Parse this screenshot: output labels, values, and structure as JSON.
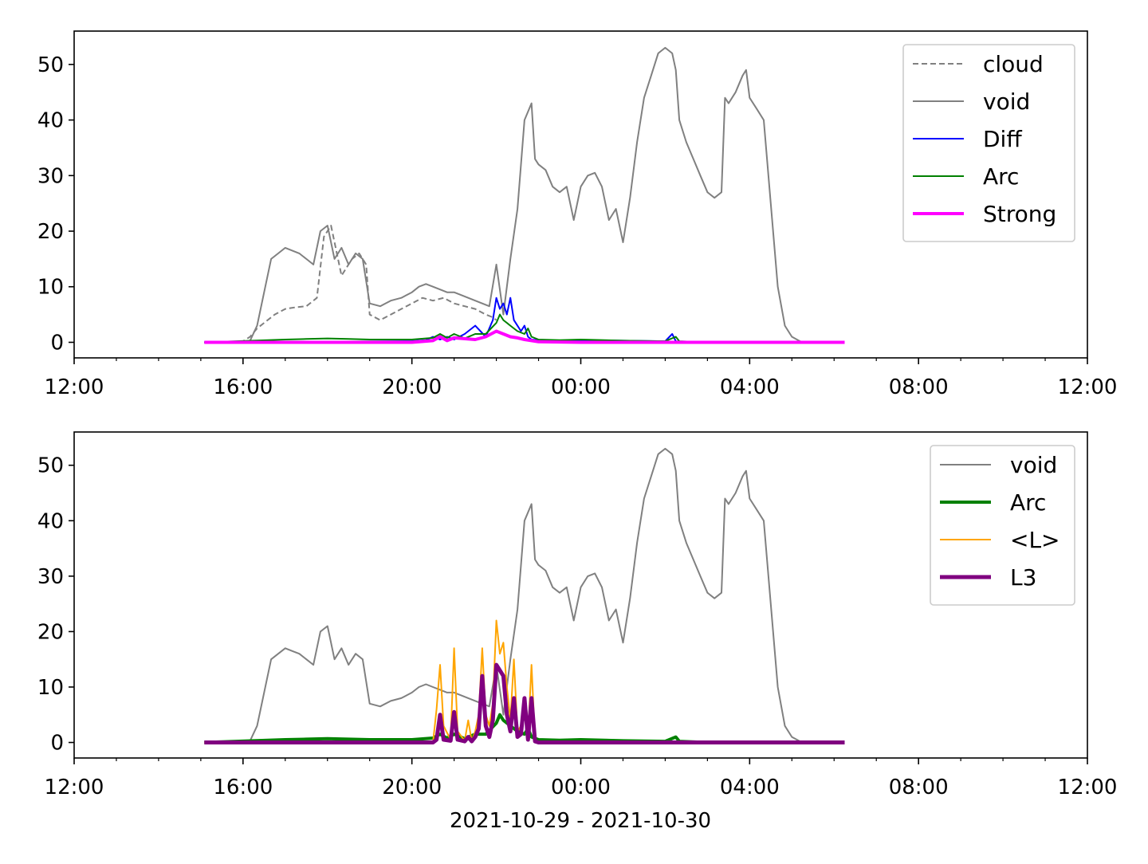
{
  "figure": {
    "xlabel": "2021-10-29 - 2021-10-30"
  },
  "chart_data": [
    {
      "type": "line",
      "panel": "top",
      "xlim": [
        "2021-10-29 12:00",
        "2021-10-30 12:00"
      ],
      "ylim": [
        -2.8,
        56
      ],
      "x_ticks": [
        "12:00",
        "16:00",
        "20:00",
        "00:00",
        "04:00",
        "08:00",
        "12:00"
      ],
      "y_ticks": [
        0,
        10,
        20,
        30,
        40,
        50
      ],
      "legend_position": "upper-right",
      "series": [
        {
          "name": "cloud",
          "color": "#808080",
          "style": "dashed",
          "width": 2,
          "x": [
            "15:05",
            "15:50",
            "16:00",
            "16:10",
            "16:20",
            "16:30",
            "16:45",
            "17:00",
            "17:15",
            "17:30",
            "17:45",
            "17:55",
            "18:05",
            "18:20",
            "18:35",
            "18:45",
            "18:55",
            "19:00",
            "19:15",
            "19:30",
            "19:45",
            "20:00",
            "20:15",
            "20:30",
            "20:45",
            "21:00",
            "21:15",
            "21:30",
            "21:45",
            "21:55",
            "22:00"
          ],
          "y": [
            0,
            0,
            0.2,
            1.0,
            2.5,
            3.5,
            5.0,
            6.0,
            6.3,
            6.5,
            8.0,
            19.0,
            21.0,
            12.0,
            15.0,
            16.0,
            14.0,
            5.0,
            4.0,
            5.0,
            6.0,
            7.0,
            8.0,
            7.5,
            8.0,
            7.0,
            6.5,
            6.0,
            5.0,
            4.5,
            4.0
          ]
        },
        {
          "name": "void",
          "color": "#808080",
          "style": "solid",
          "width": 2,
          "x": [
            "15:05",
            "16:00",
            "16:10",
            "16:20",
            "16:30",
            "16:40",
            "16:50",
            "17:00",
            "17:10",
            "17:20",
            "17:30",
            "17:40",
            "17:50",
            "18:00",
            "18:10",
            "18:20",
            "18:30",
            "18:40",
            "18:50",
            "19:00",
            "19:15",
            "19:30",
            "19:45",
            "20:00",
            "20:10",
            "20:20",
            "20:30",
            "20:40",
            "20:50",
            "21:00",
            "21:10",
            "21:20",
            "21:30",
            "21:40",
            "21:50",
            "22:00",
            "22:10",
            "22:20",
            "22:30",
            "22:40",
            "22:50",
            "22:55",
            "23:00",
            "23:10",
            "23:20",
            "23:30",
            "23:40",
            "23:50",
            "00:00",
            "00:10",
            "00:20",
            "00:30",
            "00:40",
            "00:50",
            "01:00",
            "01:10",
            "01:20",
            "01:30",
            "01:40",
            "01:50",
            "02:00",
            "02:10",
            "02:15",
            "02:20",
            "02:30",
            "02:40",
            "02:50",
            "03:00",
            "03:10",
            "03:20",
            "03:25",
            "03:30",
            "03:40",
            "03:50",
            "03:55",
            "04:00",
            "04:10",
            "04:20",
            "04:30",
            "04:40",
            "04:50",
            "05:00",
            "05:10",
            "05:15",
            "06:15"
          ],
          "y": [
            0,
            0,
            0.3,
            3.0,
            9.0,
            15.0,
            16.0,
            17.0,
            16.5,
            16.0,
            15.0,
            14.0,
            20.0,
            21.0,
            15.0,
            17.0,
            14.0,
            16.0,
            15.0,
            7.0,
            6.5,
            7.5,
            8.0,
            9.0,
            10.0,
            10.5,
            10.0,
            9.5,
            9.0,
            9.0,
            8.5,
            8.0,
            7.5,
            7.0,
            6.5,
            14.0,
            5.0,
            15.0,
            24.0,
            40.0,
            43.0,
            33.0,
            32.0,
            31.0,
            28.0,
            27.0,
            28.0,
            22.0,
            28.0,
            30.0,
            30.5,
            28.0,
            22.0,
            24.0,
            18.0,
            26.0,
            36.0,
            44.0,
            48.0,
            52.0,
            53.0,
            52.0,
            49.0,
            40.0,
            36.0,
            33.0,
            30.0,
            27.0,
            26.0,
            27.0,
            44.0,
            43.0,
            45.0,
            48.0,
            49.0,
            44.0,
            42.0,
            40.0,
            25.0,
            10.0,
            3.0,
            1.0,
            0.3,
            0,
            0
          ]
        },
        {
          "name": "Diff",
          "color": "#0000ff",
          "style": "solid",
          "width": 2,
          "x": [
            "15:05",
            "20:00",
            "20:20",
            "20:30",
            "20:40",
            "20:50",
            "21:00",
            "21:15",
            "21:30",
            "21:45",
            "21:55",
            "22:00",
            "22:05",
            "22:10",
            "22:15",
            "22:20",
            "22:25",
            "22:30",
            "22:35",
            "22:40",
            "22:45",
            "22:50",
            "23:00",
            "23:30",
            "00:00",
            "01:00",
            "02:00",
            "02:10",
            "02:15",
            "02:20",
            "03:00",
            "04:00",
            "05:00",
            "06:15"
          ],
          "y": [
            0,
            0.2,
            0.4,
            1.0,
            0.5,
            1.0,
            0.5,
            1.5,
            3.0,
            1.0,
            4.0,
            8.0,
            6.0,
            7.0,
            5.0,
            8.0,
            4.0,
            3.0,
            2.0,
            3.0,
            1.0,
            0.5,
            0.4,
            0.3,
            0.4,
            0.3,
            0.2,
            1.5,
            0.2,
            0.1,
            0,
            0,
            0,
            0
          ]
        },
        {
          "name": "Arc",
          "color": "#008000",
          "style": "solid",
          "width": 2,
          "x": [
            "15:05",
            "17:00",
            "17:30",
            "18:00",
            "18:30",
            "19:00",
            "19:30",
            "20:00",
            "20:30",
            "20:40",
            "20:50",
            "21:00",
            "21:15",
            "21:30",
            "21:45",
            "22:00",
            "22:05",
            "22:10",
            "22:20",
            "22:30",
            "22:40",
            "22:45",
            "22:50",
            "23:00",
            "23:30",
            "00:00",
            "01:00",
            "02:00",
            "02:15",
            "02:20",
            "03:00",
            "06:15"
          ],
          "y": [
            0,
            0.5,
            0.6,
            0.7,
            0.6,
            0.5,
            0.5,
            0.5,
            0.8,
            1.5,
            0.8,
            1.5,
            0.7,
            1.5,
            1.5,
            3.5,
            5.0,
            4.0,
            3.0,
            2.0,
            1.5,
            2.5,
            1.0,
            0.5,
            0.4,
            0.5,
            0.3,
            0.2,
            1.0,
            0.2,
            0,
            0
          ]
        },
        {
          "name": "Strong",
          "color": "#ff00ff",
          "style": "solid",
          "width": 4,
          "x": [
            "15:05",
            "20:00",
            "20:30",
            "20:40",
            "20:50",
            "21:00",
            "21:30",
            "21:45",
            "22:00",
            "22:10",
            "22:20",
            "22:30",
            "22:40",
            "22:50",
            "23:00",
            "00:00",
            "06:15"
          ],
          "y": [
            0,
            0,
            0.3,
            1.0,
            0.3,
            0.8,
            0.5,
            1.0,
            2.0,
            1.5,
            1.0,
            0.8,
            0.5,
            0.3,
            0.1,
            0,
            0
          ]
        }
      ]
    },
    {
      "type": "line",
      "panel": "bottom",
      "xlim": [
        "2021-10-29 12:00",
        "2021-10-30 12:00"
      ],
      "ylim": [
        -2.8,
        56
      ],
      "x_ticks": [
        "12:00",
        "16:00",
        "20:00",
        "00:00",
        "04:00",
        "08:00",
        "12:00"
      ],
      "y_ticks": [
        0,
        10,
        20,
        30,
        40,
        50
      ],
      "legend_position": "upper-right",
      "series": [
        {
          "name": "void",
          "color": "#808080",
          "style": "solid",
          "width": 2,
          "x": [
            "15:05",
            "16:00",
            "16:10",
            "16:20",
            "16:30",
            "16:40",
            "16:50",
            "17:00",
            "17:10",
            "17:20",
            "17:30",
            "17:40",
            "17:50",
            "18:00",
            "18:10",
            "18:20",
            "18:30",
            "18:40",
            "18:50",
            "19:00",
            "19:15",
            "19:30",
            "19:45",
            "20:00",
            "20:10",
            "20:20",
            "20:30",
            "20:40",
            "20:50",
            "21:00",
            "21:10",
            "21:20",
            "21:30",
            "21:40",
            "21:50",
            "22:00",
            "22:10",
            "22:20",
            "22:30",
            "22:40",
            "22:50",
            "22:55",
            "23:00",
            "23:10",
            "23:20",
            "23:30",
            "23:40",
            "23:50",
            "00:00",
            "00:10",
            "00:20",
            "00:30",
            "00:40",
            "00:50",
            "01:00",
            "01:10",
            "01:20",
            "01:30",
            "01:40",
            "01:50",
            "02:00",
            "02:10",
            "02:15",
            "02:20",
            "02:30",
            "02:40",
            "02:50",
            "03:00",
            "03:10",
            "03:20",
            "03:25",
            "03:30",
            "03:40",
            "03:50",
            "03:55",
            "04:00",
            "04:10",
            "04:20",
            "04:30",
            "04:40",
            "04:50",
            "05:00",
            "05:10",
            "05:15",
            "06:15"
          ],
          "y": [
            0,
            0,
            0.3,
            3.0,
            9.0,
            15.0,
            16.0,
            17.0,
            16.5,
            16.0,
            15.0,
            14.0,
            20.0,
            21.0,
            15.0,
            17.0,
            14.0,
            16.0,
            15.0,
            7.0,
            6.5,
            7.5,
            8.0,
            9.0,
            10.0,
            10.5,
            10.0,
            9.5,
            9.0,
            9.0,
            8.5,
            8.0,
            7.5,
            7.0,
            6.5,
            14.0,
            5.0,
            15.0,
            24.0,
            40.0,
            43.0,
            33.0,
            32.0,
            31.0,
            28.0,
            27.0,
            28.0,
            22.0,
            28.0,
            30.0,
            30.5,
            28.0,
            22.0,
            24.0,
            18.0,
            26.0,
            36.0,
            44.0,
            48.0,
            52.0,
            53.0,
            52.0,
            49.0,
            40.0,
            36.0,
            33.0,
            30.0,
            27.0,
            26.0,
            27.0,
            44.0,
            43.0,
            45.0,
            48.0,
            49.0,
            44.0,
            42.0,
            40.0,
            25.0,
            10.0,
            3.0,
            1.0,
            0.3,
            0,
            0
          ]
        },
        {
          "name": "Arc",
          "color": "#008000",
          "style": "solid",
          "width": 4,
          "x": [
            "15:05",
            "17:00",
            "17:30",
            "18:00",
            "18:30",
            "19:00",
            "19:30",
            "20:00",
            "20:30",
            "20:40",
            "20:50",
            "21:00",
            "21:15",
            "21:30",
            "21:45",
            "22:00",
            "22:05",
            "22:10",
            "22:20",
            "22:30",
            "22:40",
            "22:45",
            "22:50",
            "23:00",
            "23:30",
            "00:00",
            "01:00",
            "02:00",
            "02:15",
            "02:20",
            "03:00",
            "06:15"
          ],
          "y": [
            0,
            0.5,
            0.6,
            0.7,
            0.6,
            0.5,
            0.5,
            0.5,
            0.8,
            1.5,
            0.8,
            1.5,
            0.7,
            1.5,
            1.5,
            3.5,
            5.0,
            4.0,
            3.0,
            2.0,
            1.5,
            2.5,
            1.0,
            0.5,
            0.4,
            0.5,
            0.3,
            0.2,
            1.0,
            0.2,
            0,
            0
          ]
        },
        {
          "name": "<L>",
          "color": "#ffa500",
          "style": "solid",
          "width": 2,
          "x": [
            "15:05",
            "20:30",
            "20:35",
            "20:40",
            "20:45",
            "20:55",
            "21:00",
            "21:05",
            "21:15",
            "21:20",
            "21:25",
            "21:30",
            "21:35",
            "21:40",
            "21:45",
            "21:50",
            "21:55",
            "22:00",
            "22:05",
            "22:10",
            "22:15",
            "22:20",
            "22:25",
            "22:30",
            "22:35",
            "22:40",
            "22:45",
            "22:50",
            "22:55",
            "23:00",
            "06:15"
          ],
          "y": [
            0,
            0,
            6.0,
            14.0,
            3.0,
            0.5,
            17.0,
            2.0,
            0.3,
            4.0,
            0.3,
            2.0,
            5.0,
            17.0,
            5.0,
            3.0,
            7.0,
            22.0,
            16.0,
            18.0,
            10.0,
            4.0,
            15.0,
            2.0,
            3.0,
            6.0,
            1.0,
            14.0,
            0.5,
            0,
            0
          ]
        },
        {
          "name": "L3",
          "color": "#800080",
          "style": "solid",
          "width": 5,
          "x": [
            "15:05",
            "20:30",
            "20:35",
            "20:40",
            "20:45",
            "20:55",
            "21:00",
            "21:05",
            "21:15",
            "21:20",
            "21:25",
            "21:30",
            "21:35",
            "21:40",
            "21:45",
            "21:50",
            "21:55",
            "22:00",
            "22:05",
            "22:10",
            "22:15",
            "22:20",
            "22:25",
            "22:30",
            "22:35",
            "22:40",
            "22:45",
            "22:50",
            "22:55",
            "23:00",
            "06:15"
          ],
          "y": [
            0,
            0,
            0.5,
            5.0,
            0.5,
            0.3,
            5.5,
            0.5,
            0.2,
            1.0,
            0.2,
            1.0,
            2.5,
            12.0,
            3.0,
            1.0,
            4.0,
            14.0,
            13.0,
            12.0,
            5.0,
            2.0,
            8.0,
            1.0,
            1.5,
            8.0,
            0.5,
            8.0,
            0.2,
            0,
            0
          ]
        }
      ]
    }
  ]
}
